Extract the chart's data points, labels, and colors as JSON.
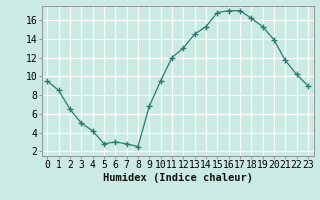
{
  "x": [
    0,
    1,
    2,
    3,
    4,
    5,
    6,
    7,
    8,
    9,
    10,
    11,
    12,
    13,
    14,
    15,
    16,
    17,
    18,
    19,
    20,
    21,
    22,
    23
  ],
  "y": [
    9.5,
    8.5,
    6.5,
    5.0,
    4.2,
    2.8,
    3.0,
    2.8,
    2.5,
    6.8,
    9.5,
    12.0,
    13.0,
    14.5,
    15.3,
    16.8,
    17.0,
    17.0,
    16.2,
    15.3,
    13.9,
    11.7,
    10.2,
    9.0
  ],
  "line_color": "#2a7d6e",
  "marker": "+",
  "marker_size": 4,
  "marker_linewidth": 1.0,
  "bg_color": "#cceae4",
  "grid_color": "#ffffff",
  "xlabel": "Humidex (Indice chaleur)",
  "xlim": [
    -0.5,
    23.5
  ],
  "ylim": [
    1.5,
    17.5
  ],
  "ytick_vals": [
    2,
    4,
    6,
    8,
    10,
    12,
    14,
    16
  ],
  "xlabel_fontsize": 7.5,
  "tick_fontsize": 7
}
